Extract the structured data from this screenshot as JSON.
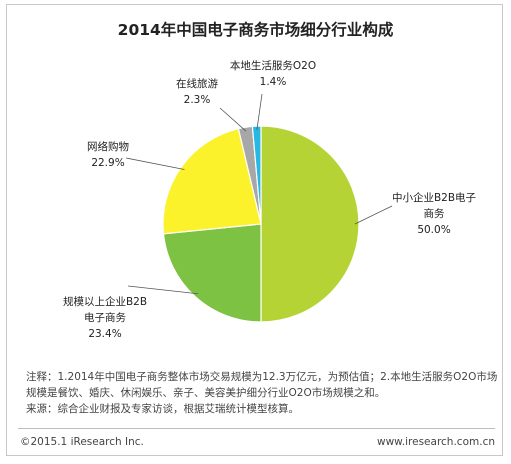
{
  "chart_data": {
    "type": "pie",
    "title": "2014年中国电子商务市场细分行业构成",
    "slices": [
      {
        "label_lines": [
          "中小企业B2B电子",
          "商务"
        ],
        "value": 50.0,
        "value_text": "50.0%",
        "color": "#b5d334"
      },
      {
        "label_lines": [
          "规模以上企业B2B",
          "电子商务"
        ],
        "value": 23.4,
        "value_text": "23.4%",
        "color": "#7dc242"
      },
      {
        "label_lines": [
          "网络购物"
        ],
        "value": 22.9,
        "value_text": "22.9%",
        "color": "#fbf22b"
      },
      {
        "label_lines": [
          "在线旅游"
        ],
        "value": 2.3,
        "value_text": "2.3%",
        "color": "#a7a7a7"
      },
      {
        "label_lines": [
          "本地生活服务O2O"
        ],
        "value": 1.4,
        "value_text": "1.4%",
        "color": "#29b7e3"
      }
    ]
  },
  "notes": [
    "注释：1.2014年中国电子商务整体市场交易规模为12.3万亿元，为预估值；2.本地生活服务O2O市场",
    "规模是餐饮、婚庆、休闲娱乐、亲子、美容美护细分行业O2O市场规模之和。",
    "来源：综合企业财报及专家访谈，根据艾瑞统计模型核算。"
  ],
  "footer": {
    "copyright": "©2015.1 iResearch Inc.",
    "url": "www.iresearch.com.cn"
  }
}
